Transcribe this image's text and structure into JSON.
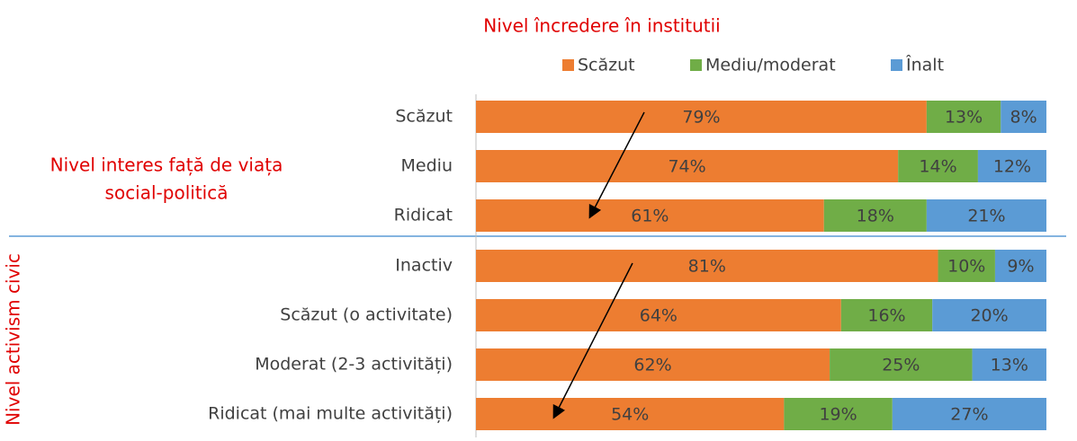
{
  "chart_data": {
    "type": "bar",
    "orientation": "horizontal",
    "stacked": true,
    "title": "Nivel încredere în institutii",
    "y_group_labels": [
      [
        "Nivel interes față de viața",
        "social-politică"
      ],
      [
        "Nivel activism civic"
      ]
    ],
    "categories": [
      "Scăzut",
      "Mediu",
      "Ridicat",
      "Inactiv",
      "Scăzut (o activitate)",
      "Moderat (2-3 activități)",
      "Ridicat (mai multe activități)"
    ],
    "series": [
      {
        "name": "Scăzut",
        "color": "#ed7d31",
        "values": [
          79,
          74,
          61,
          81,
          64,
          62,
          54
        ],
        "value_labels": [
          "79%",
          "74%",
          "61%",
          "81%",
          "64%",
          "62%",
          "54%"
        ]
      },
      {
        "name": "Mediu/moderat",
        "color": "#70ad47",
        "values": [
          13,
          14,
          18,
          10,
          16,
          25,
          19
        ],
        "value_labels": [
          "13%",
          "14%",
          "18%",
          "10%",
          "16%",
          "25%",
          "19%"
        ]
      },
      {
        "name": "Înalt",
        "color": "#5b9bd5",
        "values": [
          8,
          12,
          21,
          9,
          20,
          13,
          27
        ],
        "value_labels": [
          "8%",
          "12%",
          "21%",
          "9%",
          "20%",
          "13%",
          "27%"
        ]
      }
    ],
    "xlim": [
      0,
      100
    ],
    "legend": "top"
  }
}
